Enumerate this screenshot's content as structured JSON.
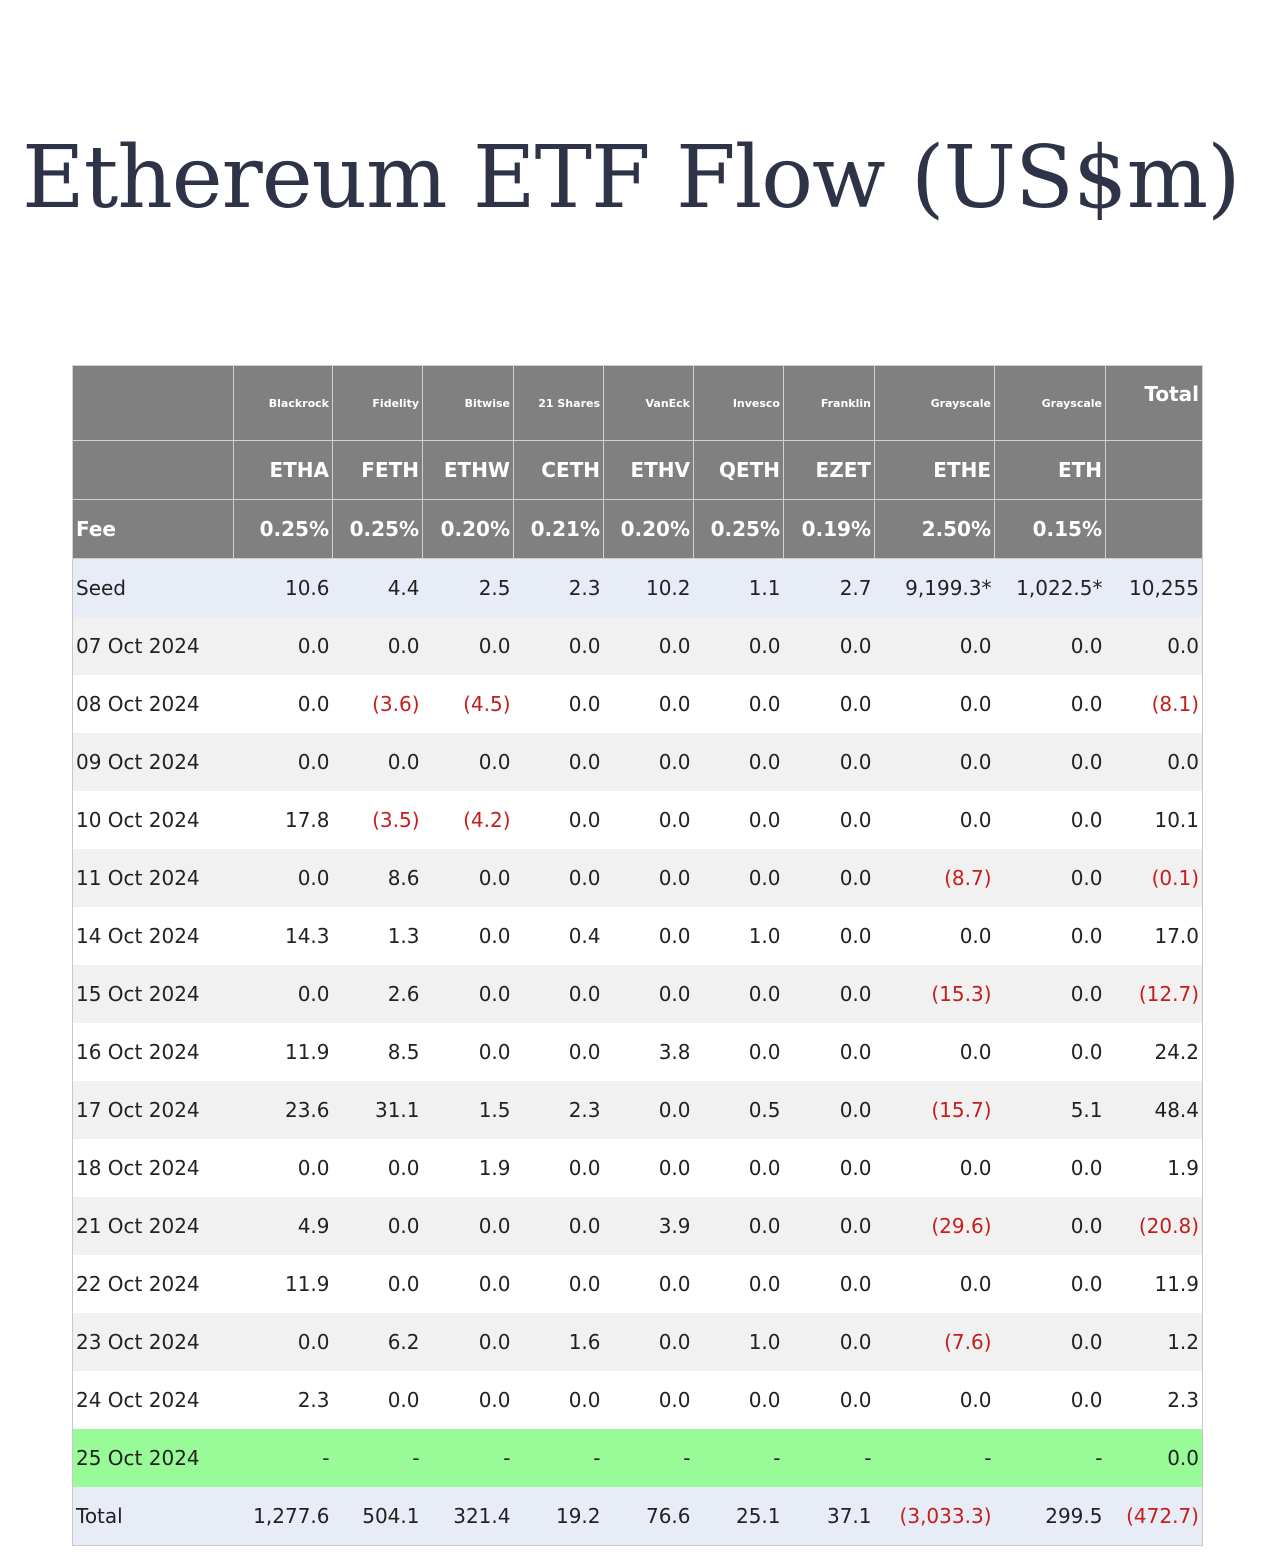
{
  "title": "Ethereum ETF Flow (US$m)",
  "table": {
    "issuers": [
      "Blackrock",
      "Fidelity",
      "Bitwise",
      "21 Shares",
      "VanEck",
      "Invesco",
      "Franklin",
      "Grayscale",
      "Grayscale",
      "Total"
    ],
    "tickers": [
      "ETHA",
      "FETH",
      "ETHW",
      "CETH",
      "ETHV",
      "QETH",
      "EZET",
      "ETHE",
      "ETH"
    ],
    "fee_label": "Fee",
    "fees": [
      "0.25%",
      "0.25%",
      "0.20%",
      "0.21%",
      "0.20%",
      "0.25%",
      "0.19%",
      "2.50%",
      "0.15%"
    ],
    "rows": [
      [
        "Seed",
        "10.6",
        "4.4",
        "2.5",
        "2.3",
        "10.2",
        "1.1",
        "2.7",
        "9,199.3*",
        "1,022.5*",
        "10,255"
      ],
      [
        "07 Oct 2024",
        "0.0",
        "0.0",
        "0.0",
        "0.0",
        "0.0",
        "0.0",
        "0.0",
        "0.0",
        "0.0",
        "0.0"
      ],
      [
        "08 Oct 2024",
        "0.0",
        "(3.6)",
        "(4.5)",
        "0.0",
        "0.0",
        "0.0",
        "0.0",
        "0.0",
        "0.0",
        "(8.1)"
      ],
      [
        "09 Oct 2024",
        "0.0",
        "0.0",
        "0.0",
        "0.0",
        "0.0",
        "0.0",
        "0.0",
        "0.0",
        "0.0",
        "0.0"
      ],
      [
        "10 Oct 2024",
        "17.8",
        "(3.5)",
        "(4.2)",
        "0.0",
        "0.0",
        "0.0",
        "0.0",
        "0.0",
        "0.0",
        "10.1"
      ],
      [
        "11 Oct 2024",
        "0.0",
        "8.6",
        "0.0",
        "0.0",
        "0.0",
        "0.0",
        "0.0",
        "(8.7)",
        "0.0",
        "(0.1)"
      ],
      [
        "14 Oct 2024",
        "14.3",
        "1.3",
        "0.0",
        "0.4",
        "0.0",
        "1.0",
        "0.0",
        "0.0",
        "0.0",
        "17.0"
      ],
      [
        "15 Oct 2024",
        "0.0",
        "2.6",
        "0.0",
        "0.0",
        "0.0",
        "0.0",
        "0.0",
        "(15.3)",
        "0.0",
        "(12.7)"
      ],
      [
        "16 Oct 2024",
        "11.9",
        "8.5",
        "0.0",
        "0.0",
        "3.8",
        "0.0",
        "0.0",
        "0.0",
        "0.0",
        "24.2"
      ],
      [
        "17 Oct 2024",
        "23.6",
        "31.1",
        "1.5",
        "2.3",
        "0.0",
        "0.5",
        "0.0",
        "(15.7)",
        "5.1",
        "48.4"
      ],
      [
        "18 Oct 2024",
        "0.0",
        "0.0",
        "1.9",
        "0.0",
        "0.0",
        "0.0",
        "0.0",
        "0.0",
        "0.0",
        "1.9"
      ],
      [
        "21 Oct 2024",
        "4.9",
        "0.0",
        "0.0",
        "0.0",
        "3.9",
        "0.0",
        "0.0",
        "(29.6)",
        "0.0",
        "(20.8)"
      ],
      [
        "22 Oct 2024",
        "11.9",
        "0.0",
        "0.0",
        "0.0",
        "0.0",
        "0.0",
        "0.0",
        "0.0",
        "0.0",
        "11.9"
      ],
      [
        "23 Oct 2024",
        "0.0",
        "6.2",
        "0.0",
        "1.6",
        "0.0",
        "1.0",
        "0.0",
        "(7.6)",
        "0.0",
        "1.2"
      ],
      [
        "24 Oct 2024",
        "2.3",
        "0.0",
        "0.0",
        "0.0",
        "0.0",
        "0.0",
        "0.0",
        "0.0",
        "0.0",
        "2.3"
      ],
      [
        "25 Oct 2024",
        "-",
        "-",
        "-",
        "-",
        "-",
        "-",
        "-",
        "-",
        "-",
        "0.0"
      ],
      [
        "Total",
        "1,277.6",
        "504.1",
        "321.4",
        "19.2",
        "76.6",
        "25.1",
        "37.1",
        "(3,033.3)",
        "299.5",
        "(472.7)"
      ]
    ]
  }
}
